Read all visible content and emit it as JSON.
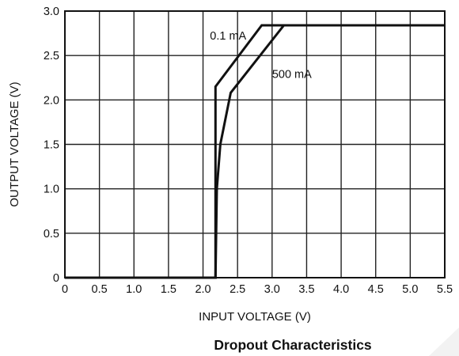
{
  "chart_data": {
    "type": "line",
    "caption": "Dropout Characteristics",
    "xlabel": "INPUT VOLTAGE (V)",
    "ylabel": "OUTPUT VOLTAGE (V)",
    "xlim": [
      0,
      5.5
    ],
    "ylim": [
      0,
      3.0
    ],
    "x_ticks": [
      "0",
      "0.5",
      "1.0",
      "1.5",
      "2.0",
      "2.5",
      "3.0",
      "3.5",
      "4.0",
      "4.5",
      "5.0",
      "5.5"
    ],
    "y_ticks": [
      "0",
      "0.5",
      "1.0",
      "1.5",
      "2.0",
      "2.5",
      "3.0"
    ],
    "grid": true,
    "legend": "none",
    "series": [
      {
        "name": "0.1 mA",
        "x": [
          0,
          2.18,
          2.18,
          2.85,
          5.5
        ],
        "y": [
          0,
          0,
          2.15,
          2.84,
          2.84
        ],
        "label_at": [
          2.1,
          2.68
        ]
      },
      {
        "name": "500 mA",
        "x": [
          0,
          2.18,
          2.2,
          2.25,
          2.4,
          3.17,
          5.5
        ],
        "y": [
          0,
          0,
          1.0,
          1.5,
          2.08,
          2.84,
          2.84
        ],
        "label_at": [
          3.0,
          2.25
        ]
      }
    ],
    "line_color": "#111111"
  }
}
